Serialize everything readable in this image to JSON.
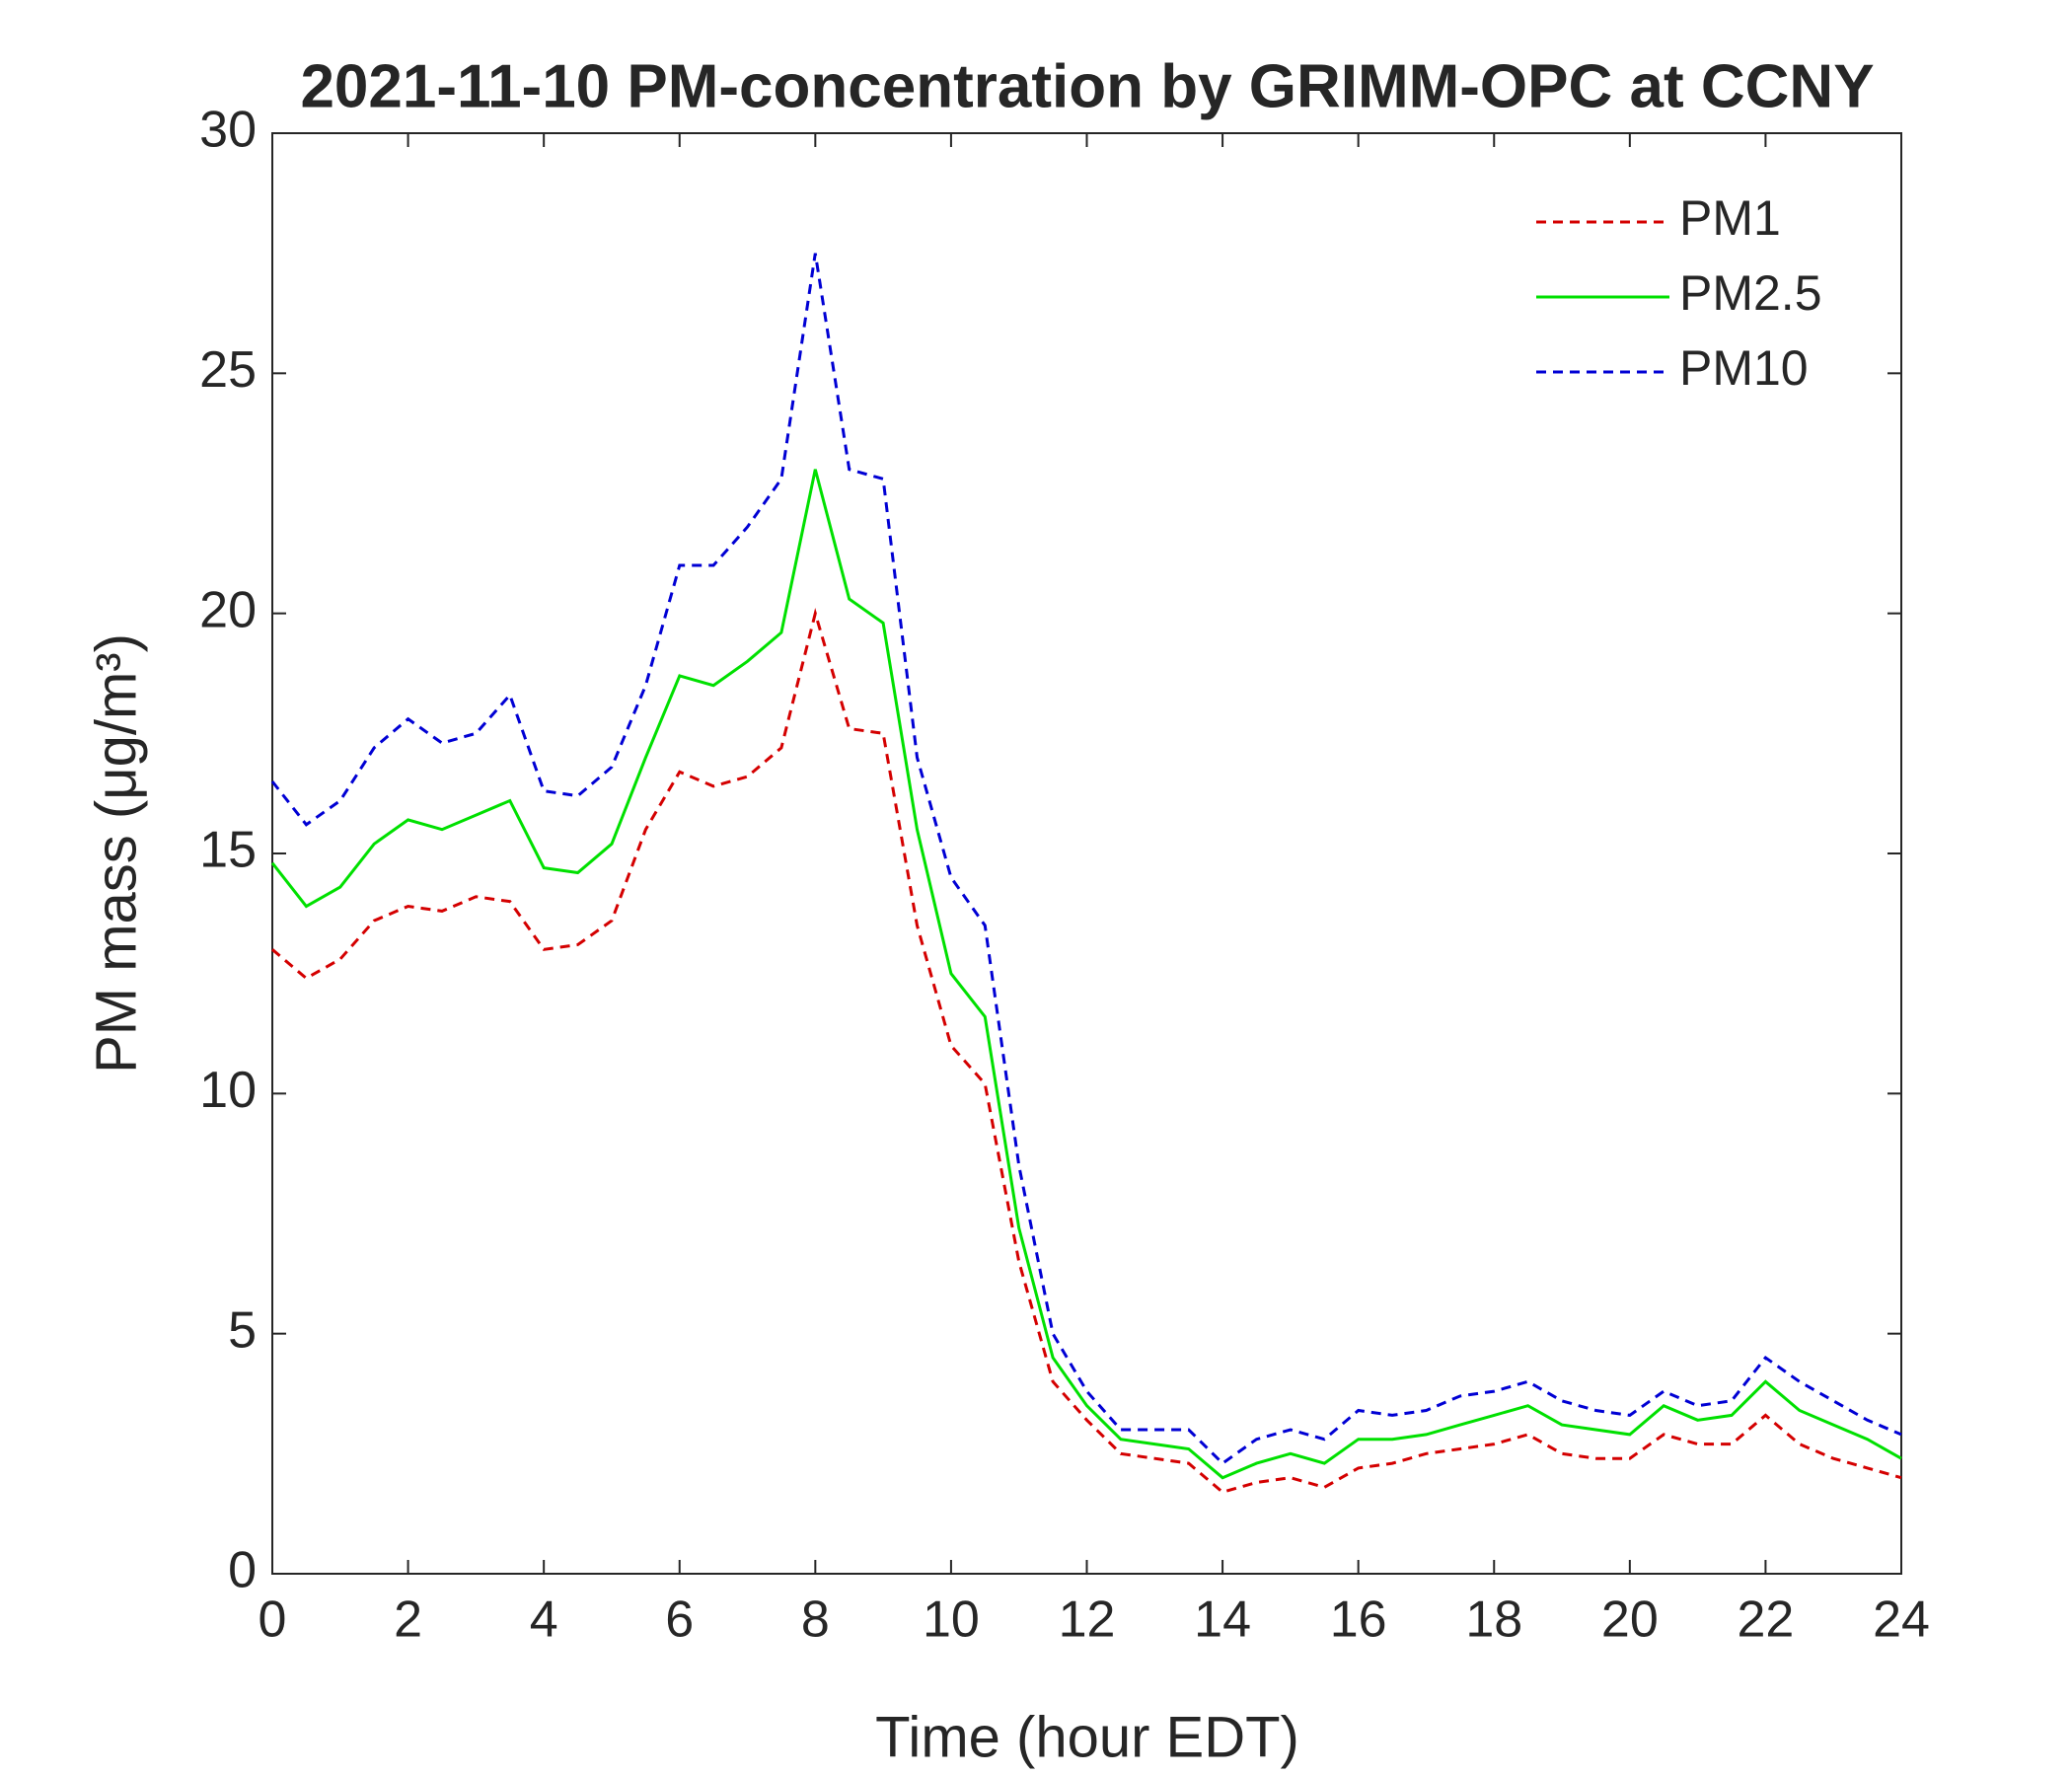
{
  "chart_data": {
    "type": "line",
    "title": "2021-11-10 PM-concentration by GRIMM-OPC at CCNY",
    "x_label": "Time (hour EDT)",
    "y_label": "PM mass (μg/m³)",
    "x": [
      0,
      0.5,
      1,
      1.5,
      2,
      2.5,
      3,
      3.5,
      4,
      4.5,
      5,
      5.5,
      6,
      6.5,
      7,
      7.5,
      8,
      8.5,
      9,
      9.5,
      10,
      10.5,
      11,
      11.5,
      12,
      12.5,
      13,
      13.5,
      14,
      14.5,
      15,
      15.5,
      16,
      16.5,
      17,
      17.5,
      18,
      18.5,
      19,
      19.5,
      20,
      20.5,
      21,
      21.5,
      22,
      22.5,
      23,
      23.5,
      24
    ],
    "series": [
      {
        "name": "PM1",
        "color": "#d40000",
        "linestyle": "dashed",
        "values": [
          13.0,
          12.4,
          12.8,
          13.6,
          13.9,
          13.8,
          14.1,
          14.0,
          13.0,
          13.1,
          13.6,
          15.5,
          16.7,
          16.4,
          16.6,
          17.2,
          20.0,
          17.6,
          17.5,
          13.5,
          11.0,
          10.2,
          6.5,
          4.0,
          3.2,
          2.5,
          2.4,
          2.3,
          1.7,
          1.9,
          2.0,
          1.8,
          2.2,
          2.3,
          2.5,
          2.6,
          2.7,
          2.9,
          2.5,
          2.4,
          2.4,
          2.9,
          2.7,
          2.7,
          3.3,
          2.7,
          2.4,
          2.2,
          2.0
        ]
      },
      {
        "name": "PM2.5",
        "color": "#00e000",
        "linestyle": "solid",
        "values": [
          14.8,
          13.9,
          14.3,
          15.2,
          15.7,
          15.5,
          15.8,
          16.1,
          14.7,
          14.6,
          15.2,
          17.0,
          18.7,
          18.5,
          19.0,
          19.6,
          23.0,
          20.3,
          19.8,
          15.5,
          12.5,
          11.6,
          7.2,
          4.5,
          3.5,
          2.8,
          2.7,
          2.6,
          2.0,
          2.3,
          2.5,
          2.3,
          2.8,
          2.8,
          2.9,
          3.1,
          3.3,
          3.5,
          3.1,
          3.0,
          2.9,
          3.5,
          3.2,
          3.3,
          4.0,
          3.4,
          3.1,
          2.8,
          2.4
        ]
      },
      {
        "name": "PM10",
        "color": "#0000d4",
        "linestyle": "dashed",
        "values": [
          16.5,
          15.6,
          16.1,
          17.2,
          17.8,
          17.3,
          17.5,
          18.3,
          16.3,
          16.2,
          16.8,
          18.5,
          21.0,
          21.0,
          21.8,
          22.8,
          27.5,
          23.0,
          22.8,
          17.0,
          14.5,
          13.5,
          8.5,
          5.0,
          3.8,
          3.0,
          3.0,
          3.0,
          2.3,
          2.8,
          3.0,
          2.8,
          3.4,
          3.3,
          3.4,
          3.7,
          3.8,
          4.0,
          3.6,
          3.4,
          3.3,
          3.8,
          3.5,
          3.6,
          4.5,
          4.0,
          3.6,
          3.2,
          2.9
        ]
      }
    ],
    "xlim": [
      0,
      24
    ],
    "xticks": [
      0,
      2,
      4,
      6,
      8,
      10,
      12,
      14,
      16,
      18,
      20,
      22,
      24
    ],
    "ylim": [
      0,
      30
    ],
    "yticks": [
      0,
      5,
      10,
      15,
      20,
      25,
      30
    ],
    "grid": false,
    "legend": "top-right"
  }
}
